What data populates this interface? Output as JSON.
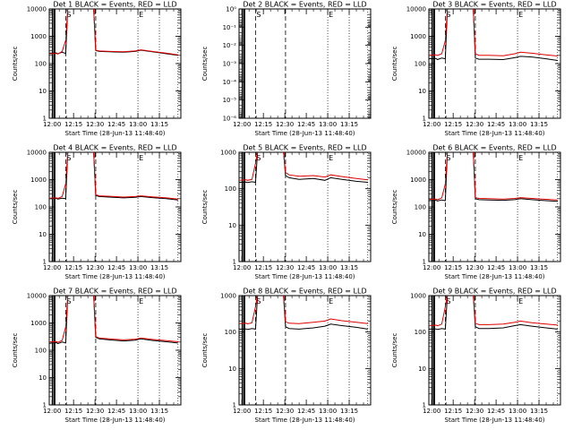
{
  "figure": {
    "title_suffix": " BLACK = Events, RED = LLD",
    "xlabel": "Start Time (28-Jun-13 11:48:40)",
    "ylabel": "Counts/sec",
    "event_color": "#000000",
    "lld_color": "#e00000",
    "time_ticks": [
      "12:00",
      "12:15",
      "12:30",
      "12:45",
      "13:00",
      "13:15"
    ],
    "time_range_min": [
      -2,
      90
    ],
    "marker_labels": {
      "s": "S",
      "e": "E"
    },
    "markers_min": {
      "solid": [
        0.2,
        1.3,
        1.9
      ],
      "s_dashed": [
        9.5
      ],
      "e_dashed": [
        30.5
      ],
      "dotted": [
        60,
        75,
        88
      ]
    }
  },
  "chart_data": [
    {
      "type": "line",
      "id": "det1",
      "title": "Det 1",
      "yaxis": {
        "type": "log",
        "ylim": [
          1,
          10000
        ],
        "tick_labels": [
          "1",
          "10",
          "100",
          "1000",
          "10000"
        ]
      },
      "series": [
        {
          "name": "Events",
          "color": "#000000",
          "x": [
            -2,
            3,
            4,
            7,
            9.5,
            11,
            12,
            18,
            24,
            29,
            30.5,
            33,
            40,
            50,
            58,
            62,
            70,
            80,
            88
          ],
          "y": [
            240,
            245,
            230,
            260,
            235,
            12000,
            12000,
            12000,
            12000,
            12000,
            300,
            280,
            270,
            260,
            280,
            310,
            270,
            230,
            200
          ]
        },
        {
          "name": "LLD",
          "color": "#e00000",
          "x": [
            -2,
            3,
            4,
            7,
            9.5,
            11,
            12,
            18,
            24,
            29,
            30.5,
            33,
            40,
            50,
            58,
            62,
            70,
            80,
            88
          ],
          "y": [
            230,
            235,
            225,
            280,
            720,
            12000,
            12000,
            12000,
            12000,
            12000,
            310,
            290,
            280,
            270,
            290,
            320,
            280,
            240,
            210
          ]
        }
      ]
    },
    {
      "type": "line",
      "id": "det2",
      "title": "Det 2",
      "yaxis": {
        "type": "log",
        "ylim": [
          1,
          1e-06
        ],
        "tick_labels": [
          "10⁻⁶",
          "10⁻⁵",
          "10⁻⁴",
          "10⁻³",
          "10⁻²",
          "10⁻¹",
          "10⁰"
        ]
      },
      "series": []
    },
    {
      "type": "line",
      "id": "det3",
      "title": "Det 3",
      "yaxis": {
        "type": "log",
        "ylim": [
          1,
          10000
        ],
        "tick_labels": [
          "1",
          "10",
          "100",
          "1000",
          "10000"
        ]
      },
      "series": [
        {
          "name": "Events",
          "color": "#000000",
          "x": [
            -2,
            3,
            4,
            7,
            9.5,
            11,
            12,
            18,
            24,
            29,
            30.5,
            33,
            40,
            50,
            58,
            62,
            70,
            80,
            88
          ],
          "y": [
            150,
            155,
            140,
            160,
            150,
            12000,
            12000,
            12000,
            12000,
            12000,
            160,
            145,
            145,
            140,
            165,
            185,
            175,
            150,
            130
          ]
        },
        {
          "name": "LLD",
          "color": "#e00000",
          "x": [
            -2,
            3,
            4,
            7,
            9.5,
            11,
            12,
            18,
            24,
            29,
            30.5,
            33,
            40,
            50,
            58,
            62,
            70,
            80,
            88
          ],
          "y": [
            200,
            210,
            200,
            230,
            700,
            12000,
            12000,
            12000,
            12000,
            12000,
            230,
            200,
            200,
            195,
            230,
            260,
            240,
            210,
            190
          ]
        }
      ]
    },
    {
      "type": "line",
      "id": "det4",
      "title": "Det 4",
      "yaxis": {
        "type": "log",
        "ylim": [
          1,
          10000
        ],
        "tick_labels": [
          "1",
          "10",
          "100",
          "1000",
          "10000"
        ]
      },
      "series": [
        {
          "name": "Events",
          "color": "#000000",
          "x": [
            -2,
            3,
            4,
            7,
            9.5,
            11,
            12,
            18,
            24,
            29,
            30.5,
            33,
            40,
            50,
            58,
            62,
            70,
            80,
            88
          ],
          "y": [
            200,
            205,
            195,
            210,
            200,
            12000,
            12000,
            12000,
            12000,
            12000,
            260,
            240,
            230,
            215,
            225,
            240,
            220,
            200,
            180
          ]
        },
        {
          "name": "LLD",
          "color": "#e00000",
          "x": [
            -2,
            3,
            4,
            7,
            9.5,
            11,
            12,
            18,
            24,
            29,
            30.5,
            33,
            40,
            50,
            58,
            62,
            70,
            80,
            88
          ],
          "y": [
            210,
            215,
            205,
            240,
            720,
            12000,
            12000,
            12000,
            12000,
            12000,
            280,
            255,
            245,
            230,
            240,
            255,
            235,
            215,
            195
          ]
        }
      ]
    },
    {
      "type": "line",
      "id": "det5",
      "title": "Det 5",
      "yaxis": {
        "type": "log",
        "ylim": [
          1,
          1000
        ],
        "tick_labels": [
          "1",
          "10",
          "100",
          "1000"
        ]
      },
      "series": [
        {
          "name": "Events",
          "color": "#000000",
          "x": [
            -2,
            3,
            4,
            7,
            9.5,
            11,
            12,
            18,
            24,
            29,
            30.5,
            33,
            40,
            50,
            58,
            62,
            70,
            80,
            88
          ],
          "y": [
            150,
            152,
            148,
            155,
            150,
            1200,
            1200,
            1200,
            1200,
            1200,
            230,
            200,
            180,
            190,
            170,
            200,
            180,
            160,
            150
          ]
        },
        {
          "name": "LLD",
          "color": "#e00000",
          "x": [
            -2,
            3,
            4,
            7,
            9.5,
            11,
            12,
            18,
            24,
            29,
            30.5,
            33,
            40,
            50,
            58,
            62,
            70,
            80,
            88
          ],
          "y": [
            170,
            175,
            170,
            180,
            500,
            1200,
            1200,
            1200,
            1200,
            1200,
            280,
            240,
            220,
            230,
            210,
            240,
            215,
            190,
            175
          ]
        }
      ]
    },
    {
      "type": "line",
      "id": "det6",
      "title": "Det 6",
      "yaxis": {
        "type": "log",
        "ylim": [
          1,
          10000
        ],
        "tick_labels": [
          "1",
          "10",
          "100",
          "1000",
          "10000"
        ]
      },
      "series": [
        {
          "name": "Events",
          "color": "#000000",
          "x": [
            -2,
            3,
            4,
            7,
            9.5,
            11,
            12,
            18,
            24,
            29,
            30.5,
            33,
            40,
            50,
            58,
            62,
            70,
            80,
            88
          ],
          "y": [
            170,
            175,
            165,
            180,
            170,
            12000,
            12000,
            12000,
            12000,
            12000,
            200,
            185,
            180,
            175,
            185,
            200,
            185,
            170,
            160
          ]
        },
        {
          "name": "LLD",
          "color": "#e00000",
          "x": [
            -2,
            3,
            4,
            7,
            9.5,
            11,
            12,
            18,
            24,
            29,
            30.5,
            33,
            40,
            50,
            58,
            62,
            70,
            80,
            88
          ],
          "y": [
            190,
            195,
            185,
            215,
            700,
            12000,
            12000,
            12000,
            12000,
            12000,
            220,
            205,
            200,
            195,
            205,
            220,
            205,
            190,
            180
          ]
        }
      ]
    },
    {
      "type": "line",
      "id": "det7",
      "title": "Det 7",
      "yaxis": {
        "type": "log",
        "ylim": [
          1,
          10000
        ],
        "tick_labels": [
          "1",
          "10",
          "100",
          "1000",
          "10000"
        ]
      },
      "series": [
        {
          "name": "Events",
          "color": "#000000",
          "x": [
            -2,
            3,
            4,
            7,
            9.5,
            11,
            12,
            18,
            24,
            29,
            30.5,
            33,
            40,
            50,
            58,
            62,
            70,
            80,
            88
          ],
          "y": [
            180,
            190,
            175,
            200,
            185,
            12000,
            12000,
            12000,
            12000,
            12000,
            300,
            260,
            240,
            220,
            235,
            260,
            230,
            205,
            185
          ]
        },
        {
          "name": "LLD",
          "color": "#e00000",
          "x": [
            -2,
            3,
            4,
            7,
            9.5,
            11,
            12,
            18,
            24,
            29,
            30.5,
            33,
            40,
            50,
            58,
            62,
            70,
            80,
            88
          ],
          "y": [
            200,
            210,
            195,
            230,
            720,
            12000,
            12000,
            12000,
            12000,
            12000,
            320,
            280,
            260,
            240,
            255,
            280,
            250,
            225,
            205
          ]
        }
      ]
    },
    {
      "type": "line",
      "id": "det8",
      "title": "Det 8",
      "yaxis": {
        "type": "log",
        "ylim": [
          1,
          1000
        ],
        "tick_labels": [
          "1",
          "10",
          "100",
          "1000"
        ]
      },
      "series": [
        {
          "name": "Events",
          "color": "#000000",
          "x": [
            -2,
            3,
            4,
            7,
            9.5,
            11,
            12,
            18,
            24,
            29,
            30.5,
            33,
            40,
            50,
            58,
            62,
            70,
            80,
            88
          ],
          "y": [
            120,
            122,
            118,
            125,
            120,
            1200,
            1200,
            1200,
            1200,
            1200,
            140,
            125,
            120,
            130,
            145,
            165,
            150,
            135,
            120
          ]
        },
        {
          "name": "LLD",
          "color": "#e00000",
          "x": [
            -2,
            3,
            4,
            7,
            9.5,
            11,
            12,
            18,
            24,
            29,
            30.5,
            33,
            40,
            50,
            58,
            62,
            70,
            80,
            88
          ],
          "y": [
            170,
            175,
            168,
            180,
            500,
            1200,
            1200,
            1200,
            1200,
            1200,
            190,
            175,
            170,
            185,
            200,
            230,
            205,
            185,
            170
          ]
        }
      ]
    },
    {
      "type": "line",
      "id": "det9",
      "title": "Det 9",
      "yaxis": {
        "type": "log",
        "ylim": [
          1,
          1000
        ],
        "tick_labels": [
          "1",
          "10",
          "100",
          "1000"
        ]
      },
      "series": [
        {
          "name": "Events",
          "color": "#000000",
          "x": [
            -2,
            3,
            4,
            7,
            9.5,
            11,
            12,
            18,
            24,
            29,
            30.5,
            33,
            40,
            50,
            58,
            62,
            70,
            80,
            88
          ],
          "y": [
            120,
            122,
            118,
            125,
            120,
            1200,
            1200,
            1200,
            1200,
            1200,
            140,
            125,
            125,
            130,
            150,
            160,
            145,
            130,
            120
          ]
        },
        {
          "name": "LLD",
          "color": "#e00000",
          "x": [
            -2,
            3,
            4,
            7,
            9.5,
            11,
            12,
            18,
            24,
            29,
            30.5,
            33,
            40,
            50,
            58,
            62,
            70,
            80,
            88
          ],
          "y": [
            150,
            155,
            148,
            165,
            500,
            1200,
            1200,
            1200,
            1200,
            1200,
            175,
            160,
            160,
            165,
            185,
            200,
            180,
            165,
            155
          ]
        }
      ]
    }
  ]
}
